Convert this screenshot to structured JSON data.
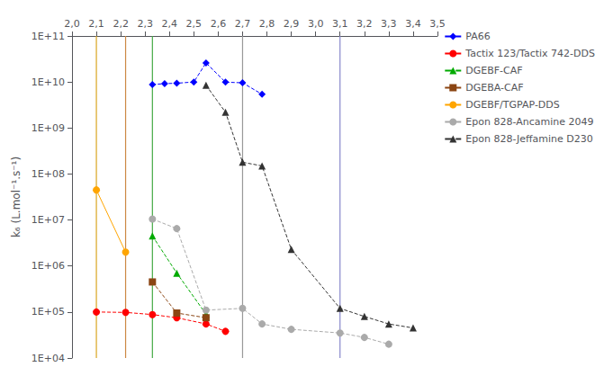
{
  "chart_data": {
    "type": "line",
    "y_label": "k₆ (L.mol⁻¹.s⁻¹)",
    "log": "y",
    "grid": false,
    "legend": "upper right",
    "xlim": [
      2.0,
      3.5
    ],
    "ylim": [
      10000,
      100000000000
    ],
    "xticks": [
      {
        "value": 2.0,
        "label": "2,0"
      },
      {
        "value": 2.1,
        "label": "2,1"
      },
      {
        "value": 2.2,
        "label": "2,2"
      },
      {
        "value": 2.3,
        "label": "2,3"
      },
      {
        "value": 2.4,
        "label": "2,4"
      },
      {
        "value": 2.5,
        "label": "2,5"
      },
      {
        "value": 2.6,
        "label": "2,6"
      },
      {
        "value": 2.7,
        "label": "2,7"
      },
      {
        "value": 2.8,
        "label": "2,8"
      },
      {
        "value": 2.9,
        "label": "2,9"
      },
      {
        "value": 3.0,
        "label": "3,0"
      },
      {
        "value": 3.1,
        "label": "3,1"
      },
      {
        "value": 3.2,
        "label": "3,2"
      },
      {
        "value": 3.3,
        "label": "3,3"
      },
      {
        "value": 3.4,
        "label": "3,4"
      },
      {
        "value": 3.5,
        "label": "3,5"
      }
    ],
    "yticks": [
      {
        "value": 10000,
        "label": "1E+04"
      },
      {
        "value": 100000,
        "label": "1E+05"
      },
      {
        "value": 1000000,
        "label": "1E+06"
      },
      {
        "value": 10000000,
        "label": "1E+07"
      },
      {
        "value": 100000000,
        "label": "1E+08"
      },
      {
        "value": 1000000000,
        "label": "1E+09"
      },
      {
        "value": 10000000000,
        "label": "1E+10"
      },
      {
        "value": 100000000000,
        "label": "1E+11"
      }
    ],
    "series": [
      {
        "name": "PA66",
        "color": "#0000FF",
        "marker": "diamond",
        "line_style": "dashed",
        "x": [
          2.33,
          2.38,
          2.43,
          2.5,
          2.55,
          2.63,
          2.7,
          2.78
        ],
        "values": [
          8800000000.0,
          9200000000.0,
          9400000000.0,
          10000000000.0,
          26000000000.0,
          9900000000.0,
          9600000000.0,
          5400000000.0
        ]
      },
      {
        "name": "Tactix 123/Tactix 742-DDS",
        "color": "#FF0000",
        "marker": "circle",
        "line_style": "dashed",
        "x": [
          2.1,
          2.22,
          2.33,
          2.43,
          2.55,
          2.63
        ],
        "values": [
          100000.0,
          98000.0,
          88000.0,
          75000.0,
          55000.0,
          38000.0
        ]
      },
      {
        "name": "DGEBF-CAF",
        "color": "#00AA00",
        "marker": "triangle",
        "line_style": "dashed",
        "x": [
          2.33,
          2.43,
          2.55
        ],
        "values": [
          4500000.0,
          700000.0,
          90000.0
        ]
      },
      {
        "name": "DGEBA-CAF",
        "color": "#8B4513",
        "marker": "square",
        "line_style": "dashed",
        "x": [
          2.33,
          2.43,
          2.55
        ],
        "values": [
          450000.0,
          95000.0,
          75000.0
        ]
      },
      {
        "name": "DGEBF/TGPAP-DDS",
        "color": "#FFA500",
        "marker": "circle",
        "line_style": "solid",
        "x": [
          2.1,
          2.22
        ],
        "values": [
          45000000.0,
          2000000.0
        ]
      },
      {
        "name": "Epon 828-Ancamine 2049",
        "color": "#AAAAAA",
        "marker": "circle",
        "line_style": "dashed",
        "x": [
          2.33,
          2.43,
          2.55,
          2.7,
          2.78,
          2.9,
          3.1,
          3.2,
          3.3
        ],
        "values": [
          10500000.0,
          6500000.0,
          110000.0,
          120000.0,
          55000.0,
          42000.0,
          35000.0,
          28000.0,
          20000.0
        ]
      },
      {
        "name": "Epon 828-Jeffamine D230",
        "color": "#333333",
        "marker": "triangle",
        "line_style": "dashed",
        "x": [
          2.55,
          2.63,
          2.7,
          2.78,
          2.9,
          3.1,
          3.2,
          3.3,
          3.4
        ],
        "values": [
          8500000000.0,
          2200000000.0,
          180000000.0,
          150000000.0,
          2300000.0,
          120000.0,
          80000.0,
          55000.0,
          45000.0
        ]
      }
    ],
    "vlines": [
      {
        "x": 2.1,
        "color": "#DAA520"
      },
      {
        "x": 2.22,
        "color": "#CC8844"
      },
      {
        "x": 2.33,
        "color": "#44AA44"
      },
      {
        "x": 2.7,
        "color": "#999999"
      },
      {
        "x": 3.1,
        "color": "#8888CC"
      }
    ]
  }
}
